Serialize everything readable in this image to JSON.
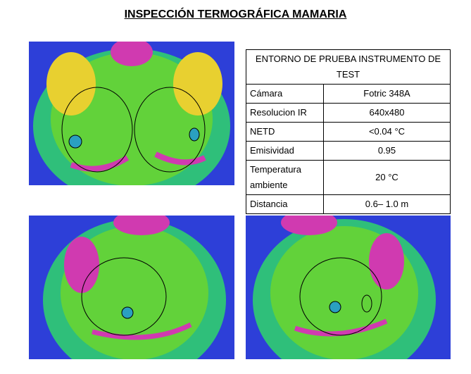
{
  "header": {
    "title": "INSPECCIÓN TERMOGRÁFICA MAMARIA"
  },
  "table": {
    "heading": "ENTORNO DE PRUEBA INSTRUMENTO DE TEST",
    "rows": [
      [
        "Cámara",
        "Fotric 348A"
      ],
      [
        "Resolucion IR",
        "640x480"
      ],
      [
        "NETD",
        "<0.04 °C"
      ],
      [
        "Emisividad",
        "0.95"
      ],
      [
        "Temperatura ambiente",
        "20 °C"
      ],
      [
        "Distancia",
        "0.6– 1.0 m"
      ]
    ]
  }
}
